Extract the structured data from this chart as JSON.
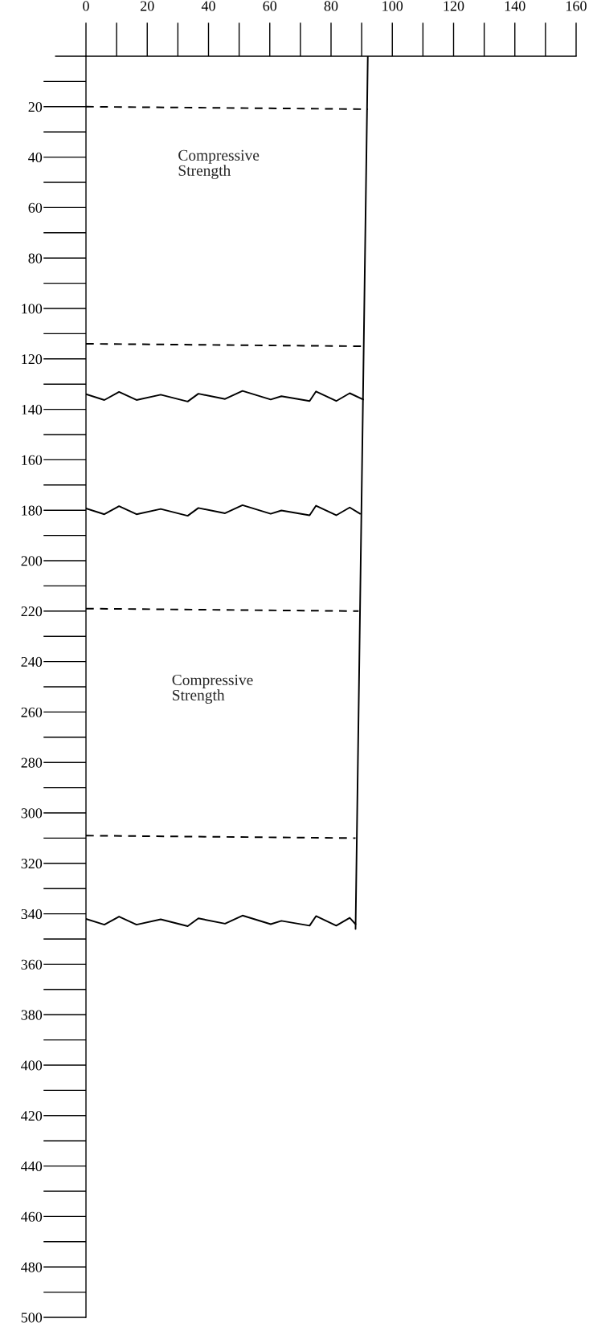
{
  "chart_data": {
    "type": "line",
    "xlim": [
      0,
      160
    ],
    "ylim": [
      500,
      0
    ],
    "xticks": [
      0,
      20,
      40,
      60,
      80,
      100,
      120,
      140,
      160
    ],
    "yticks": [
      20,
      40,
      60,
      80,
      100,
      120,
      140,
      160,
      180,
      200,
      220,
      240,
      260,
      280,
      300,
      320,
      340,
      360,
      380,
      400,
      420,
      440,
      460,
      480,
      500
    ],
    "grid": false,
    "legend": false,
    "marker": "none",
    "series": [
      {
        "color": "#000000",
        "line_style": "solid",
        "x": [
          92,
          88
        ],
        "values": [
          0,
          346
        ]
      },
      {
        "color": "#000000",
        "line_style": "dashed",
        "x": [
          0,
          92
        ],
        "values": [
          20,
          21
        ]
      },
      {
        "color": "#000000",
        "line_style": "dashed",
        "x": [
          0,
          91
        ],
        "values": [
          114,
          115
        ]
      },
      {
        "color": "#000000",
        "line_style": "dashed",
        "x": [
          0,
          89
        ],
        "values": [
          219,
          220
        ]
      },
      {
        "color": "#000000",
        "line_style": "dashed",
        "x": [
          0,
          88
        ],
        "values": [
          309,
          310
        ]
      },
      {
        "color": "#000000",
        "line_style": "solid",
        "x": [
          0,
          6,
          10.8,
          16.5,
          24.4,
          33.2,
          36.7,
          45.4,
          51.1,
          60.3,
          63.8,
          73,
          75.1,
          81.7,
          86.1,
          90.5
        ],
        "values": [
          134.0,
          136.3,
          133.1,
          136.3,
          134.2,
          136.9,
          133.8,
          135.9,
          132.7,
          136.1,
          134.8,
          136.7,
          132.9,
          136.7,
          133.6,
          136.1
        ]
      },
      {
        "color": "#000000",
        "line_style": "solid",
        "x": [
          0,
          6,
          10.8,
          16.5,
          24.4,
          33.2,
          36.7,
          45.4,
          51.1,
          60.3,
          63.8,
          73,
          75.1,
          81.7,
          86.1,
          89.5
        ],
        "values": [
          179.3,
          181.6,
          178.4,
          181.6,
          179.5,
          182.2,
          179.1,
          181.2,
          178.0,
          181.4,
          180.1,
          182.0,
          178.2,
          182.0,
          178.9,
          181.4
        ]
      },
      {
        "color": "#000000",
        "line_style": "solid",
        "x": [
          0,
          6,
          10.8,
          16.5,
          24.4,
          33.2,
          36.7,
          45.4,
          51.1,
          60.3,
          63.8,
          73,
          75.1,
          81.7,
          86.1,
          88
        ],
        "values": [
          342.0,
          344.3,
          341.1,
          344.3,
          342.2,
          344.9,
          341.8,
          343.9,
          340.7,
          344.1,
          342.8,
          344.7,
          340.9,
          344.7,
          341.6,
          344.1
        ]
      }
    ],
    "annotations": [
      "Compressive\nStrength",
      "Compressive\nStrength"
    ]
  }
}
